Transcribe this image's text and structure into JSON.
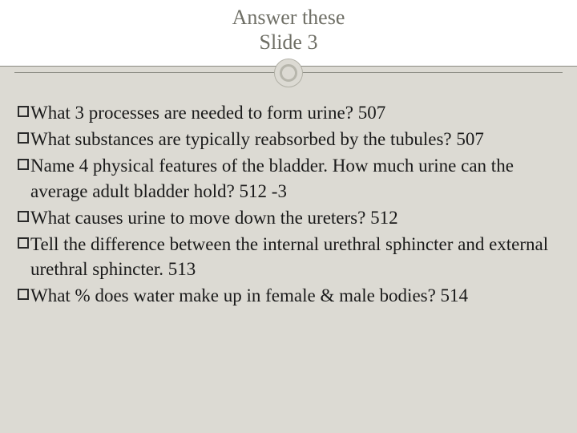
{
  "slide": {
    "title_line1": "Answer these",
    "title_line2": "Slide 3",
    "title_color": "#6f6f66",
    "title_fontsize": 26,
    "background_color": "#dcdad3",
    "header_background": "#ffffff",
    "divider_color": "#8a8a82",
    "circle_border_color": "#b7b6ac",
    "body_text_color": "#1a1a1a",
    "body_fontsize": 23,
    "bullet_style": "hollow-square",
    "bullets": [
      {
        "text": "What 3 processes are needed to form urine? 507"
      },
      {
        "text": "What substances are typically reabsorbed by the tubules? 507"
      },
      {
        "text": "Name 4 physical features of the bladder. How much urine can the average adult bladder hold? 512 -3"
      },
      {
        "text": "What causes urine to move down the ureters? 512"
      },
      {
        "text": "Tell the difference between the internal urethral sphincter and external urethral sphincter. 513"
      },
      {
        "text": "What % does water make up in female & male bodies? 514"
      }
    ]
  }
}
